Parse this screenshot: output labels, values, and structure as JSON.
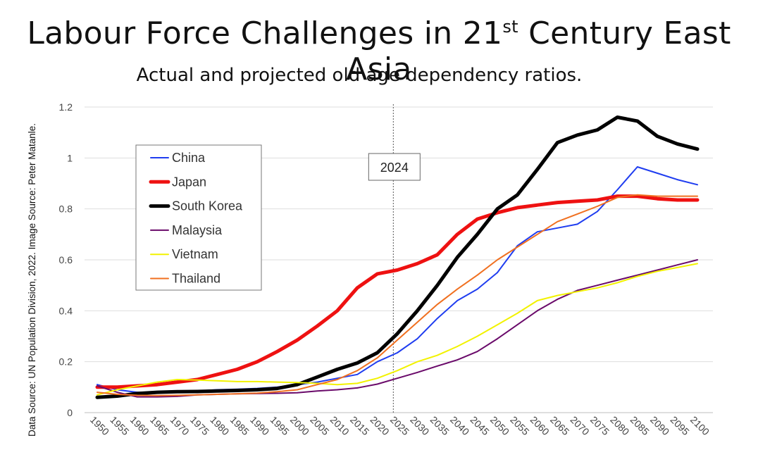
{
  "title": {
    "main": "Labour Force Challenges in 21",
    "sup": "st",
    "rest": " Century East Asia"
  },
  "subtitle": "Actual and projected old age dependency ratios.",
  "source": "Data Source: UN Population Division, 2022. Image Source: Peter Matanle.",
  "chart_data": {
    "type": "line",
    "title": "Labour Force Challenges in 21st Century East Asia",
    "subtitle": "Actual and projected old age dependency ratios.",
    "xlabel": "",
    "ylabel": "",
    "ylim": [
      0,
      1.2
    ],
    "yticks": [
      "0",
      "0.2",
      "0.4",
      "0.6",
      "0.8",
      "1",
      "1.2"
    ],
    "ytick_values": [
      0,
      0.2,
      0.4,
      0.6,
      0.8,
      1.0,
      1.2
    ],
    "x": [
      "1950",
      "1955",
      "1960",
      "1965",
      "1970",
      "1975",
      "1980",
      "1985",
      "1990",
      "1995",
      "2000",
      "2005",
      "2010",
      "2015",
      "2020",
      "2025",
      "2030",
      "2035",
      "2040",
      "2045",
      "2050",
      "2055",
      "2060",
      "2065",
      "2070",
      "2075",
      "2080",
      "2085",
      "2090",
      "2095",
      "2100"
    ],
    "grid": "horizontal",
    "legend_position": "top-left",
    "annotation": {
      "label": "2024",
      "x": 2024
    },
    "series": [
      {
        "name": "China",
        "color": "#1f3df0",
        "width": 2,
        "values": [
          0.11,
          0.09,
          0.08,
          0.08,
          0.085,
          0.085,
          0.09,
          0.092,
          0.095,
          0.1,
          0.11,
          0.12,
          0.135,
          0.15,
          0.2,
          0.235,
          0.29,
          0.37,
          0.44,
          0.485,
          0.55,
          0.655,
          0.71,
          0.725,
          0.74,
          0.79,
          0.875,
          0.965,
          0.94,
          0.915,
          0.895
        ]
      },
      {
        "name": "Japan",
        "color": "#ee1111",
        "width": 5,
        "values": [
          0.1,
          0.1,
          0.105,
          0.11,
          0.12,
          0.13,
          0.15,
          0.17,
          0.2,
          0.24,
          0.285,
          0.34,
          0.4,
          0.49,
          0.545,
          0.56,
          0.585,
          0.62,
          0.7,
          0.76,
          0.785,
          0.805,
          0.815,
          0.825,
          0.83,
          0.835,
          0.85,
          0.85,
          0.84,
          0.835,
          0.835
        ]
      },
      {
        "name": "South Korea",
        "color": "#000000",
        "width": 5,
        "values": [
          0.06,
          0.065,
          0.075,
          0.08,
          0.082,
          0.083,
          0.085,
          0.087,
          0.09,
          0.095,
          0.11,
          0.14,
          0.17,
          0.195,
          0.235,
          0.31,
          0.4,
          0.5,
          0.61,
          0.7,
          0.8,
          0.855,
          0.955,
          1.06,
          1.09,
          1.11,
          1.16,
          1.145,
          1.085,
          1.055,
          1.035
        ]
      },
      {
        "name": "Malaysia",
        "color": "#6a0a6a",
        "width": 2,
        "values": [
          0.105,
          0.08,
          0.062,
          0.062,
          0.064,
          0.07,
          0.072,
          0.074,
          0.075,
          0.076,
          0.078,
          0.085,
          0.09,
          0.097,
          0.112,
          0.135,
          0.158,
          0.183,
          0.207,
          0.24,
          0.29,
          0.345,
          0.4,
          0.445,
          0.48,
          0.5,
          0.52,
          0.54,
          0.56,
          0.58,
          0.6
        ]
      },
      {
        "name": "Vietnam",
        "color": "#f2f200",
        "width": 2,
        "values": [
          0.07,
          0.09,
          0.105,
          0.12,
          0.13,
          0.128,
          0.125,
          0.122,
          0.122,
          0.12,
          0.118,
          0.115,
          0.11,
          0.115,
          0.135,
          0.165,
          0.2,
          0.225,
          0.26,
          0.3,
          0.345,
          0.39,
          0.44,
          0.46,
          0.475,
          0.49,
          0.51,
          0.535,
          0.555,
          0.57,
          0.585
        ]
      },
      {
        "name": "Thailand",
        "color": "#f07020",
        "width": 2,
        "values": [
          0.08,
          0.072,
          0.068,
          0.067,
          0.068,
          0.07,
          0.072,
          0.074,
          0.077,
          0.082,
          0.09,
          0.11,
          0.13,
          0.165,
          0.215,
          0.285,
          0.355,
          0.425,
          0.485,
          0.54,
          0.6,
          0.65,
          0.7,
          0.75,
          0.78,
          0.81,
          0.845,
          0.855,
          0.85,
          0.85,
          0.85
        ]
      }
    ]
  }
}
